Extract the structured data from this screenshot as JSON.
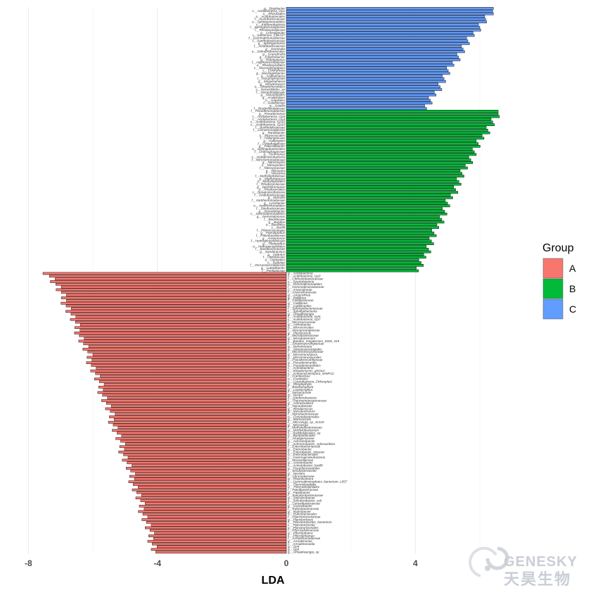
{
  "chart_data": {
    "type": "bar",
    "orientation": "horizontal",
    "xlabel": "LDA",
    "ylabel": "",
    "xlim": [
      -8.5,
      7.5
    ],
    "xticks": [
      -8,
      -4,
      0,
      4
    ],
    "grid": true,
    "legend": {
      "title": "Group",
      "position": "right",
      "entries": [
        "A",
        "B",
        "C"
      ]
    },
    "colors": {
      "A": "#f8766d",
      "B": "#00ba38",
      "C": "#619cff"
    },
    "series": [
      {
        "name": "C",
        "count": 38,
        "lda_max": 6.55,
        "lda_min": 4.35,
        "labels": [
          "g__Bryobacter",
          "c__Acidobacteria_Gp1",
          "o__Rhizobiales",
          "o__Acidobacteriales",
          "f__Acetobacteraceae",
          "o__Sphingomonadales",
          "c__Ktedonobacteria",
          "f__Sphingomonadaceae",
          "f__Rhodospirillaceae",
          "g__Conexibacter",
          "s__bacterium_Ellin337",
          "f__Gemmatimonadaceae",
          "f__Xanthobacteraceae",
          "g__Sphingomonas",
          "f__Acidobacteriaceae",
          "g__Gemmata",
          "o__Solirubrobacterales",
          "g__Granulicella",
          "g__Edaphobacter",
          "g__Rhodoplanes",
          "f__Hyphomicrobiaceae",
          "o__Rhodospirillales",
          "s__Novosphingobium",
          "c__Chloroflexia",
          "g__Mucilaginibacter",
          "g__Acidisphaera",
          "f__Isosphaeraceae",
          "g__Singulisphaera",
          "g__Streptomyces",
          "o__Streptomycetales",
          "s__Nocardioides_sp",
          "f__Nocardioidaceae",
          "g__Nocardioides",
          "g__Acidiphilium",
          "o__Gaiellales",
          "f__Gaiellaceae",
          "g__Gaiella",
          "f__Bradyrhizobiaceae"
        ]
      },
      {
        "name": "B",
        "count": 60,
        "lda_max": 6.7,
        "lda_min": 4.1,
        "labels": [
          "f__Pseudomonadaceae",
          "g__Pseudomonas",
          "c__Acidobacteria_Gp6",
          "c__Acidobacteria_Gp4",
          "c__Acidobacteria_Gp16",
          "c__Acidobacteria_Gp10",
          "f__Burkholderiaceae",
          "f__Comamonadaceae",
          "g__Ramlibacter",
          "o__Myxococcales",
          "f__Haliangiaceae",
          "g__Haliangium",
          "f__Cytophagaceae",
          "g__Flavisolibacter",
          "o__Sphingobacteriales",
          "f__Chitinophagaceae",
          "g__Terrimonas",
          "c__Deltaproteobacteria",
          "f__Nitrosomonadaceae",
          "g__Nitrosospira",
          "o__Nitrospirales",
          "f__Nitrospiraceae",
          "g__Nitrospira",
          "c__Nitrospira",
          "f__Methylophilaceae",
          "g__Methylotenera",
          "o__Methylophilales",
          "f__Rhodocyclaceae",
          "g__Dechloromonas",
          "o__Rhodocyclales",
          "c__Betaproteobacteria",
          "f__Oxalobacteraceae",
          "g__Massilia",
          "f__Xanthomonadaceae",
          "g__Lysobacter",
          "o__Xanthomonadales",
          "f__Sinobacteraceae",
          "g__Steroidobacter",
          "c__Gemmatimonadetes",
          "g__Gemmatimonas",
          "f__Bacillaceae",
          "g__Bacillus",
          "o__Bacillales",
          "c__Bacilli",
          "f__Planococcaceae",
          "g__Paenibacillus",
          "f__Paenibacillaceae",
          "g__Arenimonas",
          "f__Hydrogenophilaceae",
          "g__Thiobacillus",
          "o__Hydrogenophilales",
          "f__Sandaracinaceae",
          "g__Sandaracinus",
          "g__Opitutus",
          "f__Opitutaceae",
          "o__Opitutales",
          "c__Opitutae",
          "f__Verrucomicrobiaceae",
          "g__Luteolibacter",
          "f__Pirellulaceae"
        ]
      },
      {
        "name": "A",
        "count": 104,
        "lda_max": -7.4,
        "lda_min": -4.05,
        "labels": [
          "g__Acidobacteria",
          "c__Acidobacteria_Gp3",
          "f__Chthoniobacteraceae",
          "c__Spartobacteria",
          "o__Gemmatimonadales",
          "f__Gemmatimonadaceae",
          "c__Anaerolineae",
          "f__Anaerolineaceae",
          "g__Anaerolinea",
          "g__Bellilinea",
          "f__Caldilineaceae",
          "g__Caldilinea",
          "o__Caldilineales",
          "f__Sphingobacteriaceae",
          "c__Sphingobacteriia",
          "g__Ohtaekwangia",
          "c__Acidobacteria_Gp5",
          "c__Acidobacteria_Gp7",
          "f__Micrococcaceae",
          "g__Arthrobacter",
          "o__Micrococcales",
          "f__Intrasporangiaceae",
          "g__Phycicoccus",
          "f__Microbacteriaceae",
          "g__Microbacterium",
          "s__Bacillus_megaterium_DSM_319",
          "f__Streptosporangiaceae",
          "g__Nonomuraea",
          "o__Streptosporangiales",
          "f__Micromonosporaceae",
          "g__Micromonospora",
          "o__Micromonosporales",
          "f__Pseudonocardiaceae",
          "g__Pseudonocardia",
          "o__Pseudonocardiales",
          "c__Actinobacteria",
          "s__Streptomyces_griseus",
          "s__Actinomycetospora_WWF12",
          "f__Frankiaceae",
          "o__Frankiales",
          "c__Cyanobacteria_Chloroplast",
          "g__Streptophyta",
          "f__Bacillariophyta",
          "g__Leptolyngbya",
          "f__Nostocaceae",
          "g__Nostoc",
          "c__Ktedonobacteria",
          "f__Thermomonosporaceae",
          "g__Actinomadura",
          "f__Nocardiaceae",
          "g__Rhodococcus",
          "g__Mycobacterium",
          "f__Mycobacteriaceae",
          "o__Corynebacteriales",
          "g__Marmoricola",
          "s__Microvirga_sp_JC119",
          "g__Microvirga",
          "f__Methylobacteriaceae",
          "g__Methylobacterium",
          "s__Burkholderiales_sp",
          "o__Burkholderiales",
          "f__Alcaligenaceae",
          "g__Achromobacter",
          "s__Achromobacter_xylosoxidans",
          "f__Enterobacteriaceae",
          "g__Enterobacter",
          "s__Enterobacter_cloacae",
          "o__Enterobacteriales",
          "c__Gammaproteobacteria",
          "f__Moraxellaceae",
          "g__Acinetobacter",
          "s__Acinetobacter_lwoffii",
          "o__Pseudomonadales",
          "f__Sinobacteraceae",
          "g__Nevskia",
          "f__Chromatiaceae",
          "g__Rheinheimera",
          "s__Gemmatimonadetes_bacterium_L857",
          "c__Thermoleophilia",
          "o__Thermoleophilales",
          "f__Patulibacteraceae",
          "g__Patulibacter",
          "f__Solirubrobacteraceae",
          "g__Solirubrobacter",
          "s__Solirubrobacter_soli",
          "f__Conexibacteraceae",
          "g__Conexibacter",
          "f__Rubrobacteraceae",
          "g__Rubrobacter",
          "o__Rubrobacterales",
          "f__Planctomycetaceae",
          "g__Planctomyces",
          "s__Planctomycetes_bacterium",
          "c__Planctomycetia",
          "o__Planctomycetales",
          "f__Phycisphaeraceae",
          "g__Phycisphaera",
          "c__Phycisphaerae",
          "f__Armatimonadaceae",
          "g__Armatimonas",
          "c__Armatimonadia",
          "g__Gp4",
          "g__Gp6",
          "g__Ohtaekwangia_sp"
        ]
      }
    ]
  },
  "watermark": {
    "brand_en": "GENESKY",
    "brand_cn": "天昊生物"
  }
}
